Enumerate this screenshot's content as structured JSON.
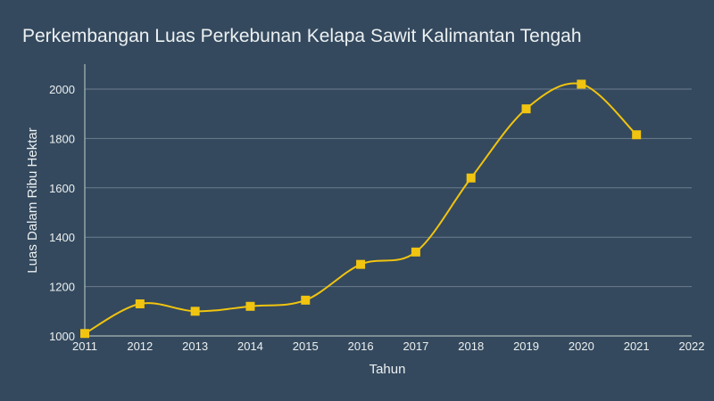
{
  "chart_data": {
    "type": "line",
    "title": "Perkembangan Luas Perkebunan Kelapa Sawit Kalimantan Tengah",
    "xlabel": "Tahun",
    "ylabel": "Luas Dalam Ribu Hektar",
    "x": [
      2011,
      2012,
      2013,
      2014,
      2015,
      2016,
      2017,
      2018,
      2019,
      2020,
      2021
    ],
    "values": [
      1010,
      1130,
      1100,
      1120,
      1145,
      1290,
      1340,
      1640,
      1920,
      2020,
      1815
    ],
    "xlim": [
      2011,
      2022
    ],
    "ylim": [
      1000,
      2100
    ],
    "xticks": [
      "2011",
      "2012",
      "2013",
      "2014",
      "2015",
      "2016",
      "2017",
      "2018",
      "2019",
      "2020",
      "2021",
      "2022"
    ],
    "yticks": [
      "1000",
      "1200",
      "1400",
      "1600",
      "1800",
      "2000"
    ],
    "grid": true,
    "line_color": "#f1c40f",
    "marker": "square"
  }
}
